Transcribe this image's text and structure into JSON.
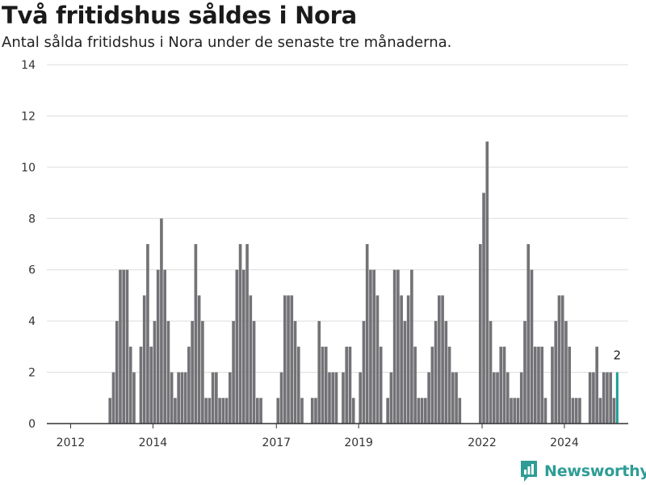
{
  "title": "Två fritidshus såldes i Nora",
  "subtitle": "Antal sålda fritidshus i Nora under de senaste tre månaderna.",
  "brand": {
    "name": "Newsworthy",
    "color": "#2e9d95",
    "icon": "bar-chart-logo-icon"
  },
  "colors": {
    "bar": "#737276",
    "highlight": "#1a9e96",
    "grid": "#dcdcdc",
    "axis": "#333333"
  },
  "chart_data": {
    "type": "bar",
    "title": "Två fritidshus såldes i Nora",
    "subtitle": "Antal sålda fritidshus i Nora under de senaste tre månaderna.",
    "xlabel": "",
    "ylabel": "",
    "ylim": [
      0,
      14
    ],
    "yticks": [
      0,
      2,
      4,
      6,
      8,
      10,
      12,
      14
    ],
    "xticks": [
      "2012",
      "2014",
      "2017",
      "2019",
      "2022",
      "2024"
    ],
    "grid": true,
    "x_start": "2012-01",
    "frequency": "monthly",
    "values": [
      0,
      0,
      0,
      0,
      0,
      0,
      0,
      0,
      0,
      0,
      0,
      1,
      2,
      4,
      6,
      6,
      6,
      3,
      2,
      0,
      3,
      5,
      7,
      3,
      4,
      6,
      8,
      6,
      4,
      2,
      1,
      2,
      2,
      2,
      3,
      4,
      7,
      5,
      4,
      1,
      1,
      2,
      2,
      1,
      1,
      1,
      2,
      4,
      6,
      7,
      6,
      7,
      5,
      4,
      1,
      1,
      0,
      0,
      0,
      0,
      1,
      2,
      5,
      5,
      5,
      4,
      3,
      1,
      0,
      0,
      1,
      1,
      4,
      3,
      3,
      2,
      2,
      2,
      0,
      2,
      3,
      3,
      1,
      0,
      2,
      4,
      7,
      6,
      6,
      5,
      3,
      0,
      1,
      2,
      6,
      6,
      5,
      4,
      5,
      6,
      3,
      1,
      1,
      1,
      2,
      3,
      4,
      5,
      5,
      4,
      3,
      2,
      2,
      1,
      0,
      0,
      0,
      0,
      0,
      7,
      9,
      11,
      4,
      2,
      2,
      3,
      3,
      2,
      1,
      1,
      1,
      2,
      4,
      7,
      6,
      3,
      3,
      3,
      1,
      0,
      3,
      4,
      5,
      5,
      4,
      3,
      1,
      1,
      1,
      0,
      0,
      2,
      2,
      3,
      1,
      2,
      2,
      2,
      1,
      2
    ],
    "highlight_label": "2",
    "highlight_index": 159
  }
}
